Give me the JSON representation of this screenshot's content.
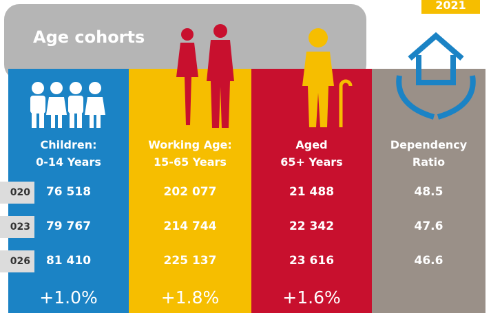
{
  "header": {
    "badge": "2021",
    "title": "Age cohorts"
  },
  "rows": [
    "020",
    "023",
    "026"
  ],
  "columns": [
    {
      "label": [
        "Children:",
        "0-14 Years"
      ],
      "values": [
        "76 518",
        "79 767",
        "81 410"
      ],
      "change": "+1.0%",
      "color": "#1b83c5"
    },
    {
      "label": [
        "Working Age:",
        "15-65 Years"
      ],
      "values": [
        "202 077",
        "214 744",
        "225 137"
      ],
      "change": "+1.8%",
      "color": "#f6be00"
    },
    {
      "label": [
        "Aged",
        "65+ Years"
      ],
      "values": [
        "21 488",
        "22 342",
        "23 616"
      ],
      "change": "+1.6%",
      "color": "#c8102e"
    },
    {
      "label": [
        "Dependency",
        "Ratio"
      ],
      "values": [
        "48.5",
        "47.6",
        "46.6"
      ],
      "color": "#9a9088"
    }
  ]
}
